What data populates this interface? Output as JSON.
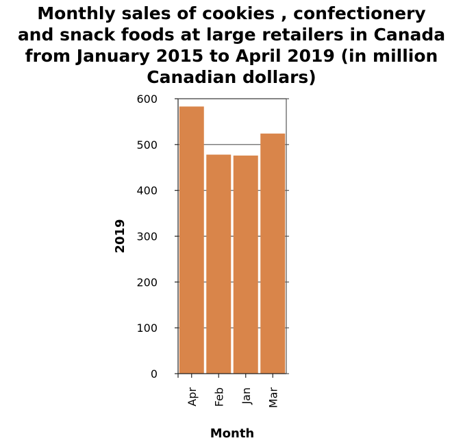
{
  "chart_data": {
    "type": "bar",
    "title_lines": [
      "Monthly sales of cookies , confectionery",
      "and snack foods at large retailers in Canada",
      "from January 2015 to April 2019 (in million",
      "Canadian dollars)"
    ],
    "xlabel": "Month",
    "ylabel": "2019",
    "categories": [
      "Apr",
      "Feb",
      "Jan",
      "Mar"
    ],
    "values": [
      583,
      478,
      476,
      524
    ],
    "ylim": [
      0,
      600
    ],
    "yticks": [
      0,
      100,
      200,
      300,
      400,
      500,
      600
    ],
    "grid": true,
    "legend": "none",
    "bar_color": "#d9854a"
  }
}
